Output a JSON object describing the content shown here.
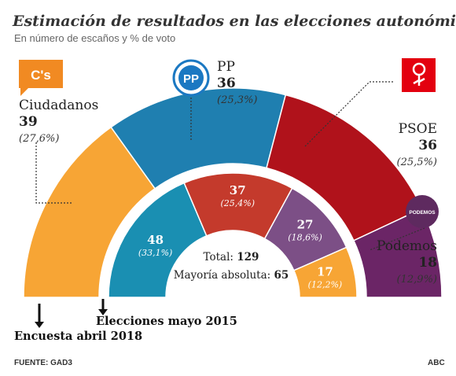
{
  "chart_data": {
    "type": "pie",
    "title": "Estimación de resultados en las elecciones autonómicas",
    "subtitle": "En número de escaños y % de voto",
    "source": "FUENTE: GAD3",
    "publisher": "ABC",
    "outer": {
      "label": "Encuesta abril 2018",
      "parties": [
        {
          "name": "Ciudadanos",
          "seats": "39",
          "pct": "(27,6%)",
          "color": "#f7a535",
          "logo": "cs-logo",
          "logo_text": "C's"
        },
        {
          "name": "PP",
          "seats": "36",
          "pct": "(25,3%)",
          "color": "#1f7fb0",
          "logo": "pp-logo",
          "logo_text": "PP"
        },
        {
          "name": "PSOE",
          "seats": "36",
          "pct": "(25,5%)",
          "color": "#b0121b",
          "logo": "psoe-logo"
        },
        {
          "name": "Podemos",
          "seats": "18",
          "pct": "(12,9%)",
          "color": "#6b2566",
          "logo": "podemos-logo",
          "logo_text": "PODEMOS"
        }
      ]
    },
    "inner": {
      "label": "Elecciones mayo 2015",
      "parties": [
        {
          "name": "PP",
          "seats": "48",
          "pct": "(33,1%)",
          "color": "#1a8fb2"
        },
        {
          "name": "PSOE",
          "seats": "37",
          "pct": "(25,4%)",
          "color": "#c43a2c"
        },
        {
          "name": "Podemos",
          "seats": "27",
          "pct": "(18,6%)",
          "color": "#7c4f86"
        },
        {
          "name": "Ciudadanos",
          "seats": "17",
          "pct": "(12,2%)",
          "color": "#f7a535"
        }
      ]
    },
    "total_label": "Total:",
    "total": "129",
    "majority_label": "Mayoría absoluta:",
    "majority": "65"
  }
}
